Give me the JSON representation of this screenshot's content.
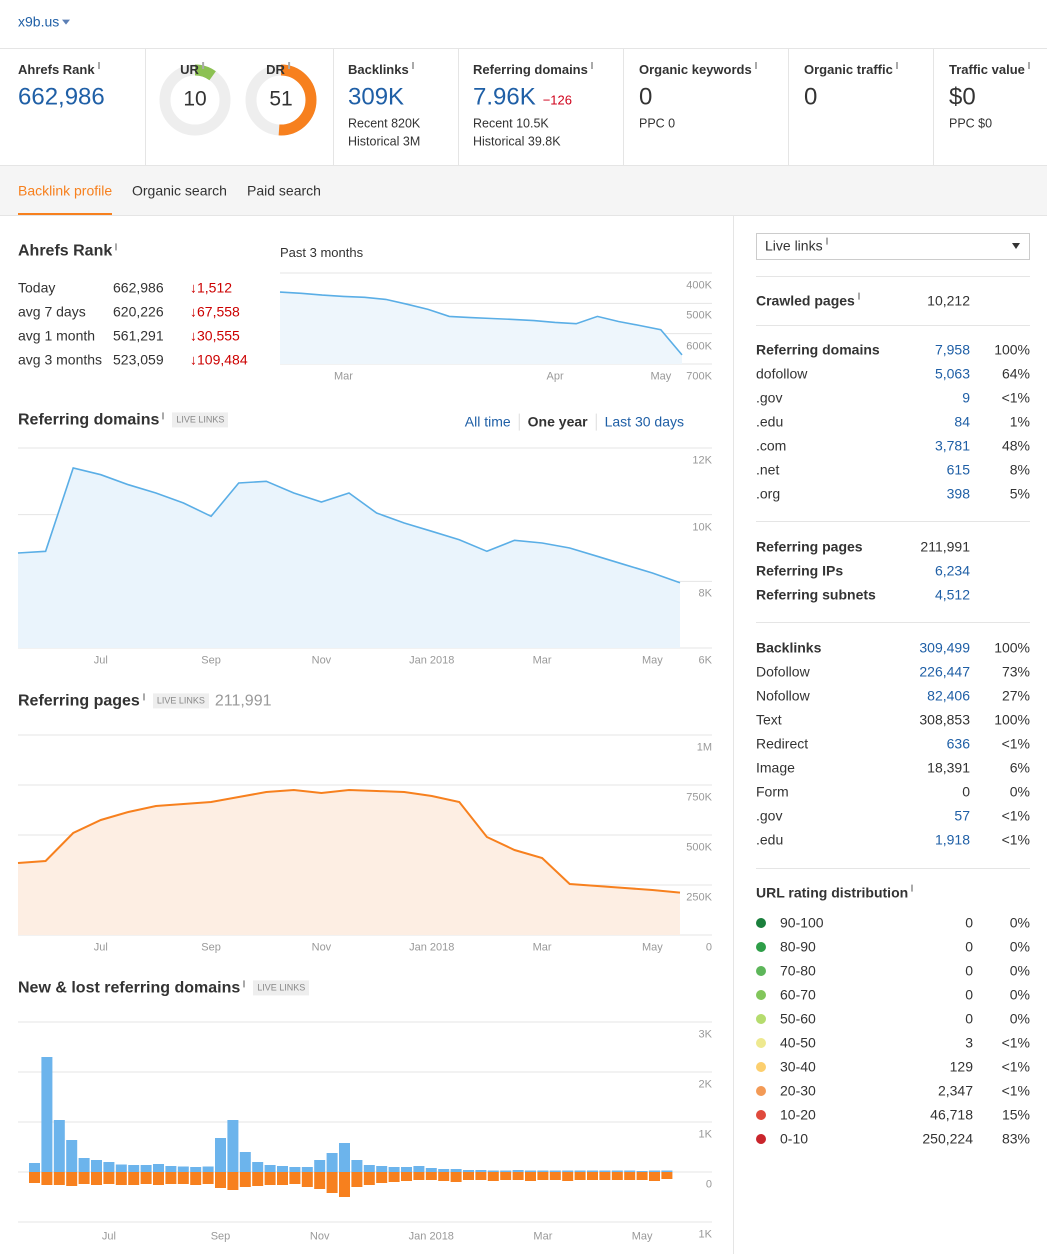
{
  "header": {
    "site": "x9b.us"
  },
  "rank_metric": {
    "label": "Ahrefs Rank",
    "value": "662,986",
    "color": "#1f5fa6"
  },
  "gauges": [
    {
      "label": "UR",
      "value": 10,
      "range": [
        0,
        100
      ],
      "color": "#8cc152"
    },
    {
      "label": "DR",
      "value": 51,
      "range": [
        0,
        100
      ],
      "color": "#f7801e"
    }
  ],
  "metrics": [
    {
      "label": "Backlinks",
      "value": "309K",
      "color": "#1f5fa6",
      "lines": [
        "Recent 820K",
        "Historical 3M"
      ]
    },
    {
      "label": "Referring domains",
      "value": "7.96K",
      "change": "−126",
      "color": "#1f5fa6",
      "lines": [
        "Recent 10.5K",
        "Historical 39.8K"
      ]
    },
    {
      "label": "Organic keywords",
      "value": "0",
      "color": "#333333",
      "lines": [
        "PPC 0"
      ]
    },
    {
      "label": "Organic traffic",
      "value": "0",
      "color": "#333333"
    },
    {
      "label": "Traffic value",
      "value": "$0",
      "color": "#333333",
      "lines": [
        "PPC $0"
      ]
    }
  ],
  "tabs": {
    "items": [
      "Backlink profile",
      "Organic search",
      "Paid search"
    ],
    "active": 0
  },
  "rank_table": {
    "title": "Ahrefs Rank",
    "rows": [
      [
        "Today",
        "662,986",
        "↓1,512"
      ],
      [
        "avg 7 days",
        "620,226",
        "↓67,558"
      ],
      [
        "avg 1 month",
        "561,291",
        "↓30,555"
      ],
      [
        "avg 3 months",
        "523,059",
        "↓109,484"
      ]
    ]
  },
  "chart_data": [
    {
      "type": "line",
      "title": "Past 3 months",
      "categories": [
        null,
        null,
        null,
        "Mar",
        null,
        null,
        null,
        null,
        null,
        null,
        null,
        null,
        null,
        "Apr",
        null,
        null,
        null,
        null,
        "May",
        null
      ],
      "values": [
        463000,
        467000,
        473000,
        477000,
        480000,
        487000,
        503000,
        520000,
        543000,
        547000,
        550000,
        553000,
        557000,
        563000,
        567000,
        543000,
        560000,
        573000,
        587000,
        670000
      ],
      "color": "#5aaee6",
      "area_color": "#eef6fc",
      "ylim": [
        700000,
        400000
      ],
      "yticks": [
        {
          "value": 400000,
          "label": "400K"
        },
        {
          "value": 500000,
          "label": "500K"
        },
        {
          "value": 600000,
          "label": "600K"
        },
        {
          "value": 700000,
          "label": "700K"
        }
      ],
      "grid": true
    },
    {
      "type": "line",
      "title": "Referring domains",
      "badge": "LIVE LINKS",
      "ranges": [
        "All time",
        "One year",
        "Last 30 days"
      ],
      "active_range": 1,
      "categories": [
        null,
        null,
        null,
        "Jul",
        null,
        null,
        null,
        "Sep",
        null,
        null,
        null,
        "Nov",
        null,
        null,
        null,
        "Jan 2018",
        null,
        null,
        null,
        "Mar",
        null,
        null,
        null,
        "May",
        null
      ],
      "values": [
        8850,
        8900,
        11400,
        11200,
        10900,
        10650,
        10350,
        9950,
        10950,
        11000,
        10650,
        10380,
        10650,
        10050,
        9750,
        9500,
        9250,
        8900,
        9230,
        9150,
        9000,
        8750,
        8500,
        8250,
        7958
      ],
      "color": "#5aaee6",
      "area_color": "#eaf4fc",
      "ylim": [
        6000,
        12000
      ],
      "yticks": [
        {
          "value": 6000,
          "label": "6K"
        },
        {
          "value": 8000,
          "label": "8K"
        },
        {
          "value": 10000,
          "label": "10K"
        },
        {
          "value": 12000,
          "label": "12K"
        }
      ],
      "grid": true
    },
    {
      "type": "line",
      "title": "Referring pages",
      "badge": "LIVE LINKS",
      "total": "211,991",
      "categories": [
        null,
        null,
        null,
        "Jul",
        null,
        null,
        null,
        "Sep",
        null,
        null,
        null,
        "Nov",
        null,
        null,
        null,
        "Jan 2018",
        null,
        null,
        null,
        "Mar",
        null,
        null,
        null,
        "May",
        null
      ],
      "values": [
        360000,
        370000,
        510000,
        575000,
        615000,
        645000,
        655000,
        665000,
        690000,
        715000,
        725000,
        710000,
        725000,
        720000,
        715000,
        695000,
        665000,
        490000,
        425000,
        385000,
        255000,
        245000,
        235000,
        225000,
        211991
      ],
      "color": "#f7801e",
      "area_color": "#fdeee3",
      "ylim": [
        0,
        1000000
      ],
      "yticks": [
        0,
        {
          "value": 250000,
          "label": "250K"
        },
        {
          "value": 500000,
          "label": "500K"
        },
        {
          "value": 750000,
          "label": "750K"
        },
        {
          "value": 1000000,
          "label": "1M"
        }
      ],
      "grid": true
    },
    {
      "type": "bar",
      "title": "New & lost referring domains",
      "badge": "LIVE LINKS",
      "categories": [
        null,
        null,
        null,
        null,
        null,
        null,
        "Jul",
        null,
        null,
        null,
        null,
        null,
        null,
        null,
        null,
        "Sep",
        null,
        null,
        null,
        null,
        null,
        null,
        null,
        "Nov",
        null,
        null,
        null,
        null,
        null,
        null,
        null,
        null,
        "Jan 2018",
        null,
        null,
        null,
        null,
        null,
        null,
        null,
        null,
        "Mar",
        null,
        null,
        null,
        null,
        null,
        null,
        null,
        "May",
        null,
        null
      ],
      "series": [
        {
          "color": "#6cb4ec",
          "values": [
            180,
            2300,
            1040,
            640,
            280,
            240,
            200,
            150,
            140,
            140,
            160,
            120,
            110,
            100,
            110,
            680,
            1040,
            400,
            200,
            140,
            120,
            100,
            100,
            240,
            380,
            580,
            240,
            140,
            120,
            100,
            100,
            120,
            80,
            60,
            60,
            40,
            40,
            30,
            30,
            40,
            30,
            30,
            30,
            30,
            30,
            30,
            30,
            30,
            30,
            20,
            30,
            30
          ]
        },
        {
          "color": "#f7801e",
          "values": [
            -220,
            -260,
            -260,
            -280,
            -240,
            -260,
            -240,
            -260,
            -260,
            -240,
            -260,
            -240,
            -240,
            -260,
            -240,
            -320,
            -360,
            -300,
            -280,
            -260,
            -260,
            -240,
            -300,
            -340,
            -420,
            -500,
            -300,
            -260,
            -220,
            -200,
            -180,
            -160,
            -160,
            -180,
            -200,
            -160,
            -160,
            -180,
            -160,
            -160,
            -180,
            -160,
            -160,
            -180,
            -160,
            -160,
            -160,
            -160,
            -160,
            -160,
            -180,
            -140
          ]
        }
      ],
      "ylim": [
        -1000,
        3000
      ],
      "yticks": [
        {
          "value": -1000,
          "label": "1K"
        },
        0,
        {
          "value": 1000,
          "label": "1K"
        },
        {
          "value": 2000,
          "label": "2K"
        },
        {
          "value": 3000,
          "label": "3K"
        }
      ],
      "grid": true
    }
  ],
  "right_panel": {
    "filter": "Live links",
    "groups": [
      {
        "rows": [
          {
            "label": "Crawled pages",
            "value": "10,212",
            "bold": true,
            "info": true
          }
        ]
      },
      {
        "rows": [
          {
            "label": "Referring domains",
            "value": "7,958",
            "share": "100%",
            "bold": true,
            "link": true
          },
          {
            "label": "dofollow",
            "value": "5,063",
            "share": "64%",
            "link": true
          },
          {
            "label": ".gov",
            "value": "9",
            "share": "<1%",
            "link": true
          },
          {
            "label": ".edu",
            "value": "84",
            "share": "1%",
            "link": true
          },
          {
            "label": ".com",
            "value": "3,781",
            "share": "48%",
            "link": true
          },
          {
            "label": ".net",
            "value": "615",
            "share": "8%",
            "link": true
          },
          {
            "label": ".org",
            "value": "398",
            "share": "5%",
            "link": true
          }
        ]
      },
      {
        "rows": [
          {
            "label": "Referring pages",
            "value": "211,991",
            "bold": true
          },
          {
            "label": "Referring IPs",
            "value": "6,234",
            "bold": true,
            "link": true
          },
          {
            "label": "Referring subnets",
            "value": "4,512",
            "bold": true,
            "link": true
          }
        ]
      },
      {
        "rows": [
          {
            "label": "Backlinks",
            "value": "309,499",
            "share": "100%",
            "bold": true,
            "link": true
          },
          {
            "label": "Dofollow",
            "value": "226,447",
            "share": "73%",
            "link": true
          },
          {
            "label": "Nofollow",
            "value": "82,406",
            "share": "27%",
            "link": true
          },
          {
            "label": "Text",
            "value": "308,853",
            "share": "100%"
          },
          {
            "label": "Redirect",
            "value": "636",
            "share": "<1%",
            "link": true
          },
          {
            "label": "Image",
            "value": "18,391",
            "share": "6%"
          },
          {
            "label": "Form",
            "value": "0",
            "share": "0%"
          },
          {
            "label": ".gov",
            "value": "57",
            "share": "<1%",
            "link": true
          },
          {
            "label": ".edu",
            "value": "1,918",
            "share": "<1%",
            "link": true
          }
        ]
      }
    ],
    "url_rating": {
      "title": "URL rating distribution",
      "rows": [
        {
          "label": "90-100",
          "value": "0",
          "share": "0%",
          "color": "#1a7f3c"
        },
        {
          "label": "80-90",
          "value": "0",
          "share": "0%",
          "color": "#2e9e48"
        },
        {
          "label": "70-80",
          "value": "0",
          "share": "0%",
          "color": "#5db65a"
        },
        {
          "label": "60-70",
          "value": "0",
          "share": "0%",
          "color": "#82c65b"
        },
        {
          "label": "50-60",
          "value": "0",
          "share": "0%",
          "color": "#b5dc6e"
        },
        {
          "label": "40-50",
          "value": "3",
          "share": "<1%",
          "color": "#eee98f"
        },
        {
          "label": "30-40",
          "value": "129",
          "share": "<1%",
          "color": "#fccf6e"
        },
        {
          "label": "20-30",
          "value": "2,347",
          "share": "<1%",
          "color": "#f39a56"
        },
        {
          "label": "10-20",
          "value": "46,718",
          "share": "15%",
          "color": "#e04a3c"
        },
        {
          "label": "0-10",
          "value": "250,224",
          "share": "83%",
          "color": "#c9252c"
        }
      ]
    }
  }
}
